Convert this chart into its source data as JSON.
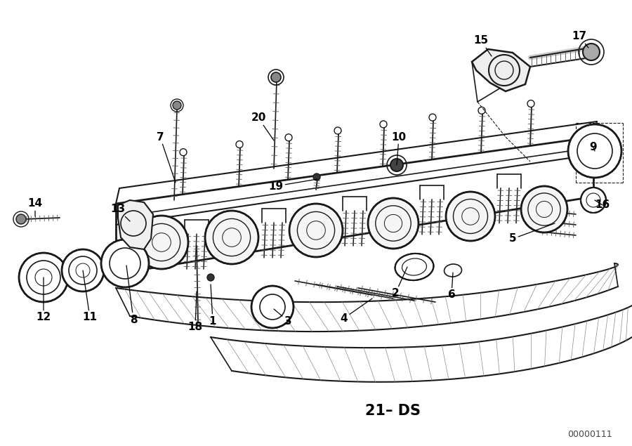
{
  "background_color": "#ffffff",
  "line_color": "#1a1a1a",
  "label_color": "#000000",
  "bottom_label": "21– DS",
  "bottom_code": "00000111",
  "figsize": [
    9.0,
    6.35
  ],
  "dpi": 100
}
